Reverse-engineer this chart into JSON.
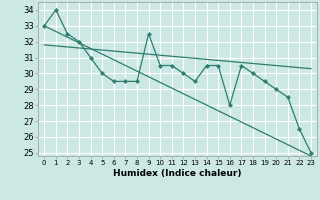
{
  "xlabel": "Humidex (Indice chaleur)",
  "bg_color": "#cce8e4",
  "line_color": "#2e7d6e",
  "grid_color": "#ffffff",
  "xlim": [
    -0.5,
    23.5
  ],
  "ylim": [
    24.8,
    34.5
  ],
  "xticks": [
    0,
    1,
    2,
    3,
    4,
    5,
    6,
    7,
    8,
    9,
    10,
    11,
    12,
    13,
    14,
    15,
    16,
    17,
    18,
    19,
    20,
    21,
    22,
    23
  ],
  "yticks": [
    25,
    26,
    27,
    28,
    29,
    30,
    31,
    32,
    33,
    34
  ],
  "main_x": [
    0,
    1,
    2,
    3,
    4,
    5,
    6,
    7,
    8,
    9,
    10,
    11,
    12,
    13,
    14,
    15,
    16,
    17,
    18,
    19,
    20,
    21,
    22,
    23
  ],
  "main_y": [
    33,
    34,
    32.5,
    32,
    31,
    30,
    29.5,
    29.5,
    29.5,
    32.5,
    30.5,
    30.5,
    30,
    29.5,
    30.5,
    30.5,
    28,
    30.5,
    30,
    29.5,
    29,
    28.5,
    26.5,
    25
  ],
  "trend1_x": [
    0,
    23
  ],
  "trend1_y": [
    33.0,
    24.8
  ],
  "trend2_x": [
    0,
    23
  ],
  "trend2_y": [
    31.8,
    30.3
  ],
  "xtick_fontsize": 5.0,
  "ytick_fontsize": 6.0,
  "xlabel_fontsize": 6.5
}
